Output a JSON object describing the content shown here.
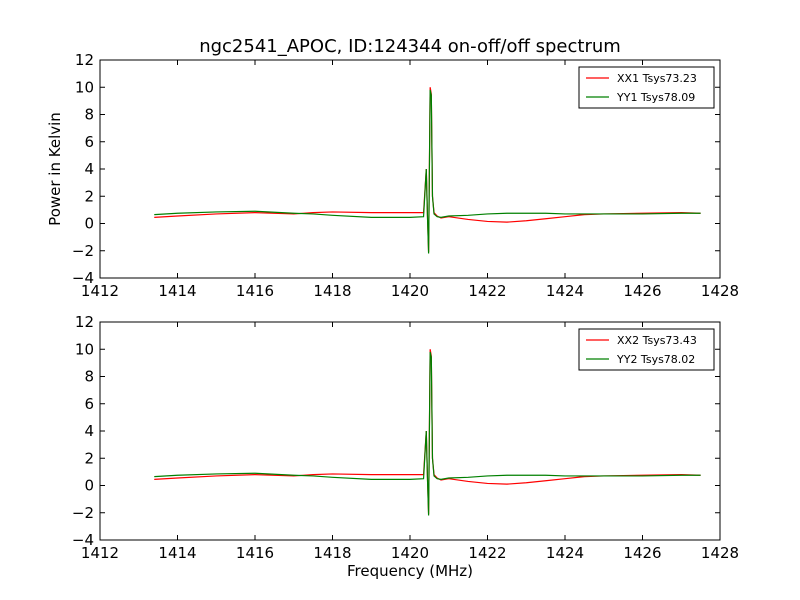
{
  "title": "ngc2541_APOC, ID:124344 on-off/off spectrum",
  "colors": {
    "xx": "#ff0000",
    "yy": "#008000",
    "axes": "#000000"
  },
  "chart_data": [
    {
      "type": "line",
      "ylabel": "Power in Kelvin",
      "xlabel": "",
      "xlim": [
        1412,
        1428
      ],
      "ylim": [
        -4,
        12
      ],
      "xticks": [
        1412,
        1414,
        1416,
        1418,
        1420,
        1422,
        1424,
        1426,
        1428
      ],
      "yticks": [
        -4,
        -2,
        0,
        2,
        4,
        6,
        8,
        10,
        12
      ],
      "legend_position": "top-right",
      "series": [
        {
          "name": "XX1 Tsys73.23",
          "color": "#ff0000",
          "x": [
            1413.4,
            1414.0,
            1415.0,
            1416.0,
            1417.0,
            1417.5,
            1418.0,
            1419.0,
            1420.0,
            1420.35,
            1420.42,
            1420.45,
            1420.48,
            1420.52,
            1420.55,
            1420.58,
            1420.62,
            1420.7,
            1420.8,
            1421.0,
            1421.5,
            1422.0,
            1422.5,
            1423.0,
            1423.5,
            1424.0,
            1424.5,
            1425.0,
            1426.0,
            1427.0,
            1427.5
          ],
          "y": [
            0.45,
            0.55,
            0.7,
            0.8,
            0.7,
            0.8,
            0.85,
            0.8,
            0.8,
            0.8,
            4.0,
            0.6,
            -2.1,
            10.0,
            9.5,
            2.0,
            0.8,
            0.55,
            0.4,
            0.5,
            0.3,
            0.15,
            0.1,
            0.2,
            0.35,
            0.5,
            0.65,
            0.7,
            0.75,
            0.8,
            0.75
          ]
        },
        {
          "name": "YY1 Tsys78.09",
          "color": "#008000",
          "x": [
            1413.4,
            1414.0,
            1415.0,
            1416.0,
            1417.0,
            1417.5,
            1418.0,
            1419.0,
            1420.0,
            1420.35,
            1420.42,
            1420.45,
            1420.48,
            1420.52,
            1420.55,
            1420.58,
            1420.62,
            1420.7,
            1420.8,
            1421.0,
            1421.5,
            1422.0,
            1422.5,
            1423.0,
            1423.5,
            1424.0,
            1424.5,
            1425.0,
            1426.0,
            1427.0,
            1427.5
          ],
          "y": [
            0.65,
            0.75,
            0.85,
            0.9,
            0.75,
            0.7,
            0.6,
            0.45,
            0.45,
            0.5,
            4.0,
            0.6,
            -2.2,
            9.8,
            9.4,
            2.0,
            0.7,
            0.5,
            0.45,
            0.55,
            0.6,
            0.7,
            0.75,
            0.75,
            0.75,
            0.7,
            0.7,
            0.7,
            0.7,
            0.75,
            0.75
          ]
        }
      ]
    },
    {
      "type": "line",
      "ylabel": "",
      "xlabel": "Frequency (MHz)",
      "xlim": [
        1412,
        1428
      ],
      "ylim": [
        -4,
        12
      ],
      "xticks": [
        1412,
        1414,
        1416,
        1418,
        1420,
        1422,
        1424,
        1426,
        1428
      ],
      "yticks": [
        -4,
        -2,
        0,
        2,
        4,
        6,
        8,
        10,
        12
      ],
      "legend_position": "top-right",
      "series": [
        {
          "name": "XX2 Tsys73.43",
          "color": "#ff0000",
          "x": [
            1413.4,
            1414.0,
            1415.0,
            1416.0,
            1417.0,
            1417.5,
            1418.0,
            1419.0,
            1420.0,
            1420.35,
            1420.42,
            1420.45,
            1420.48,
            1420.52,
            1420.55,
            1420.58,
            1420.62,
            1420.7,
            1420.8,
            1421.0,
            1421.5,
            1422.0,
            1422.5,
            1423.0,
            1423.5,
            1424.0,
            1424.5,
            1425.0,
            1426.0,
            1427.0,
            1427.5
          ],
          "y": [
            0.45,
            0.55,
            0.7,
            0.8,
            0.7,
            0.8,
            0.85,
            0.8,
            0.8,
            0.8,
            4.0,
            0.6,
            -2.1,
            10.0,
            9.5,
            2.0,
            0.8,
            0.55,
            0.4,
            0.5,
            0.3,
            0.15,
            0.1,
            0.2,
            0.35,
            0.5,
            0.65,
            0.7,
            0.75,
            0.8,
            0.75
          ]
        },
        {
          "name": "YY2 Tsys78.02",
          "color": "#008000",
          "x": [
            1413.4,
            1414.0,
            1415.0,
            1416.0,
            1417.0,
            1417.5,
            1418.0,
            1419.0,
            1420.0,
            1420.35,
            1420.42,
            1420.45,
            1420.48,
            1420.52,
            1420.55,
            1420.58,
            1420.62,
            1420.7,
            1420.8,
            1421.0,
            1421.5,
            1422.0,
            1422.5,
            1423.0,
            1423.5,
            1424.0,
            1424.5,
            1425.0,
            1426.0,
            1427.0,
            1427.5
          ],
          "y": [
            0.65,
            0.75,
            0.85,
            0.9,
            0.75,
            0.7,
            0.6,
            0.45,
            0.45,
            0.5,
            4.0,
            0.6,
            -2.2,
            9.8,
            9.4,
            2.0,
            0.7,
            0.5,
            0.45,
            0.55,
            0.6,
            0.7,
            0.75,
            0.75,
            0.75,
            0.7,
            0.7,
            0.7,
            0.7,
            0.75,
            0.75
          ]
        }
      ]
    }
  ]
}
